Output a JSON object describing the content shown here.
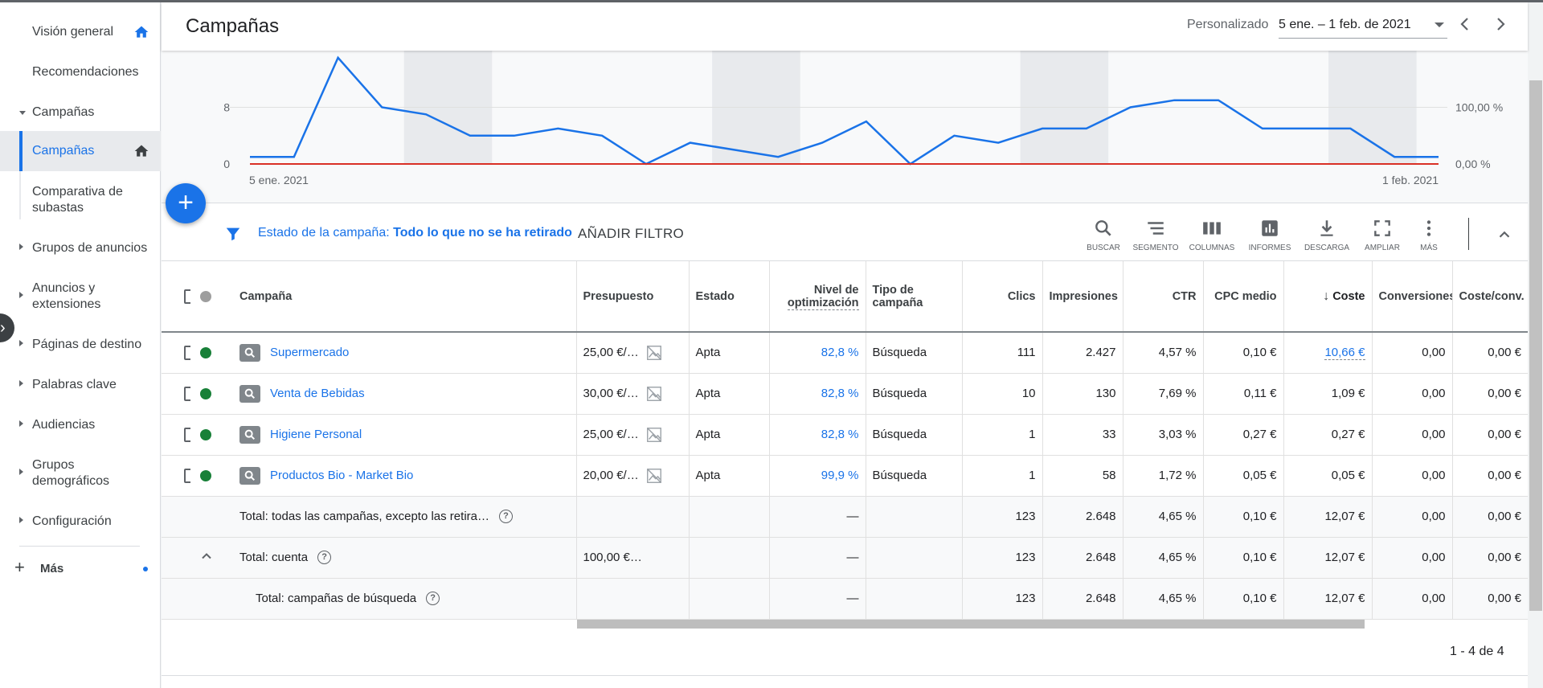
{
  "sidebar": {
    "items": [
      {
        "label": "Visión general"
      },
      {
        "label": "Recomendaciones"
      },
      {
        "label": "Campañas"
      },
      {
        "label": "Campañas"
      },
      {
        "label": "Comparativa de subastas"
      },
      {
        "label": "Grupos de anuncios"
      },
      {
        "label": "Anuncios y extensiones"
      },
      {
        "label": "Páginas de destino"
      },
      {
        "label": "Palabras clave"
      },
      {
        "label": "Audiencias"
      },
      {
        "label": "Grupos demográficos"
      },
      {
        "label": "Configuración"
      }
    ],
    "more_label": "Más",
    "accent_color": "#1a73e8"
  },
  "header": {
    "title": "Campañas",
    "date_range_label": "Personalizado",
    "date_range_value": "5 ene. – 1 feb. de 2021"
  },
  "chart_data": {
    "type": "line",
    "x_start_label": "5 ene. 2021",
    "x_end_label": "1 feb. 2021",
    "y_left_ticks": [
      "0",
      "8"
    ],
    "y_right_ticks": [
      "0,00 %",
      "100,00 %"
    ],
    "ylim": [
      0,
      16
    ],
    "series": [
      {
        "color": "#1a73e8",
        "values": [
          1,
          1,
          15,
          8,
          7,
          4,
          4,
          5,
          4,
          0,
          3,
          2,
          1,
          3,
          6,
          0,
          4,
          3,
          5,
          5,
          8,
          9,
          9,
          5,
          5,
          5,
          1,
          1
        ]
      },
      {
        "color": "#d93025",
        "values": [
          0,
          0,
          0,
          0,
          0,
          0,
          0,
          0,
          0,
          0,
          0,
          0,
          0,
          0,
          0,
          0,
          0,
          0,
          0,
          0,
          0,
          0,
          0,
          0,
          0,
          0,
          0,
          0
        ]
      }
    ],
    "shaded_weekends": [
      [
        4,
        5
      ],
      [
        11,
        12
      ],
      [
        18,
        19
      ],
      [
        25,
        26
      ]
    ]
  },
  "filter": {
    "prefix": "Estado de la campaña:",
    "value": "Todo lo que no se ha retirado",
    "add_filter_label": "AÑADIR FILTRO"
  },
  "toolbar": {
    "search": "BUSCAR",
    "segment": "SEGMENTO",
    "columns": "COLUMNAS",
    "reports": "INFORMES",
    "download": "DESCARGA",
    "expand": "AMPLIAR",
    "more": "MÁS"
  },
  "table": {
    "headers": {
      "campaign": "Campaña",
      "budget": "Presupuesto",
      "status": "Estado",
      "optimization_1": "Nivel de",
      "optimization_2": "optimización",
      "type_1": "Tipo de",
      "type_2": "campaña",
      "clicks": "Clics",
      "impressions": "Impresiones",
      "ctr": "CTR",
      "avg_cpc": "CPC medio",
      "cost": "Coste",
      "conversions": "Conversiones",
      "cost_conv": "Coste/conv."
    },
    "status_color": "#188038",
    "rows": [
      {
        "name": "Supermercado",
        "budget": "25,00 €/…",
        "status": "Apta",
        "optimization": "82,8 %",
        "type": "Búsqueda",
        "clicks": "111",
        "impressions": "2.427",
        "ctr": "4,57 %",
        "avg_cpc": "0,10 €",
        "cost": "10,66 €",
        "conversions": "0,00",
        "cost_conv": "0,00 €"
      },
      {
        "name": "Venta de Bebidas",
        "budget": "30,00 €/…",
        "status": "Apta",
        "optimization": "82,8 %",
        "type": "Búsqueda",
        "clicks": "10",
        "impressions": "130",
        "ctr": "7,69 %",
        "avg_cpc": "0,11 €",
        "cost": "1,09 €",
        "conversions": "0,00",
        "cost_conv": "0,00 €"
      },
      {
        "name": "Higiene Personal",
        "budget": "25,00 €/…",
        "status": "Apta",
        "optimization": "82,8 %",
        "type": "Búsqueda",
        "clicks": "1",
        "impressions": "33",
        "ctr": "3,03 %",
        "avg_cpc": "0,27 €",
        "cost": "0,27 €",
        "conversions": "0,00",
        "cost_conv": "0,00 €"
      },
      {
        "name": "Productos Bio - Market Bio",
        "budget": "20,00 €/…",
        "status": "Apta",
        "optimization": "99,9 %",
        "type": "Búsqueda",
        "clicks": "1",
        "impressions": "58",
        "ctr": "1,72 %",
        "avg_cpc": "0,05 €",
        "cost": "0,05 €",
        "conversions": "0,00",
        "cost_conv": "0,00 €"
      }
    ],
    "totals": [
      {
        "label": "Total: todas las campañas, excepto las retira…",
        "budget": "",
        "optimization": "—",
        "clicks": "123",
        "impressions": "2.648",
        "ctr": "4,65 %",
        "avg_cpc": "0,10 €",
        "cost": "12,07 €",
        "conversions": "0,00",
        "cost_conv": "0,00 €"
      },
      {
        "label": "Total: cuenta",
        "budget": "100,00 €…",
        "optimization": "—",
        "clicks": "123",
        "impressions": "2.648",
        "ctr": "4,65 %",
        "avg_cpc": "0,10 €",
        "cost": "12,07 €",
        "conversions": "0,00",
        "cost_conv": "0,00 €"
      },
      {
        "label": "Total: campañas de búsqueda",
        "budget": "",
        "optimization": "—",
        "clicks": "123",
        "impressions": "2.648",
        "ctr": "4,65 %",
        "avg_cpc": "0,10 €",
        "cost": "12,07 €",
        "conversions": "0,00",
        "cost_conv": "0,00 €"
      }
    ]
  },
  "pager": "1 - 4 de 4"
}
